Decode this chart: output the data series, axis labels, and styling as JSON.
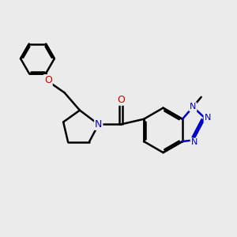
{
  "background_color": "#ebebeb",
  "bond_color": "#000000",
  "N_color": "#0000cc",
  "O_color": "#cc0000",
  "bond_width": 1.8,
  "figsize": [
    3.0,
    3.0
  ],
  "dpi": 100,
  "xlim": [
    0,
    10
  ],
  "ylim": [
    0,
    10
  ]
}
